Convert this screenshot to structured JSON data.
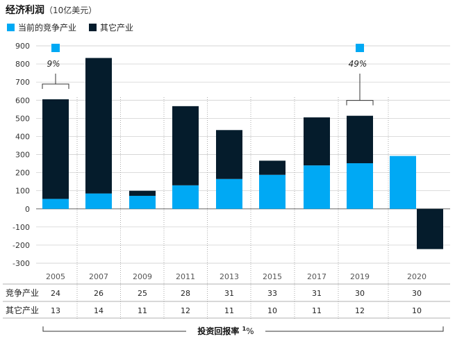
{
  "chart_data": {
    "type": "bar",
    "title": "经济利润",
    "subtitle": "（10亿美元）",
    "legend": [
      {
        "name": "当前的竞争产业",
        "color": "#00a9f4"
      },
      {
        "name": "其它产业",
        "color": "#051c2c"
      }
    ],
    "categories": [
      "2005",
      "2007",
      "2009",
      "2011",
      "2013",
      "2015",
      "2017",
      "2019",
      "2020"
    ],
    "series": [
      {
        "name": "当前的竞争产业",
        "color": "#00a9f4",
        "values": [
          55,
          85,
          72,
          130,
          165,
          188,
          240,
          252,
          292
        ]
      },
      {
        "name": "其它产业",
        "color": "#051c2c",
        "values": [
          550,
          748,
          28,
          437,
          270,
          78,
          265,
          262,
          -222
        ]
      }
    ],
    "y_ticks": [
      900,
      800,
      700,
      600,
      500,
      400,
      300,
      200,
      100,
      0,
      -100,
      -200,
      -300
    ],
    "ylim": [
      -300,
      900
    ],
    "annotations": [
      {
        "label": "9%",
        "category": "2005"
      },
      {
        "label": "49%",
        "category": "2019"
      }
    ],
    "table": {
      "rows": [
        {
          "label": "竞争产业",
          "values": [
            "24",
            "26",
            "25",
            "28",
            "31",
            "33",
            "31",
            "30",
            "30"
          ]
        },
        {
          "label": "其它产业",
          "values": [
            "13",
            "14",
            "11",
            "12",
            "11",
            "10",
            "11",
            "12",
            "10"
          ]
        }
      ],
      "footer": {
        "prefix": "投资回报率",
        "sup": "1",
        "suffix": "%"
      }
    }
  }
}
